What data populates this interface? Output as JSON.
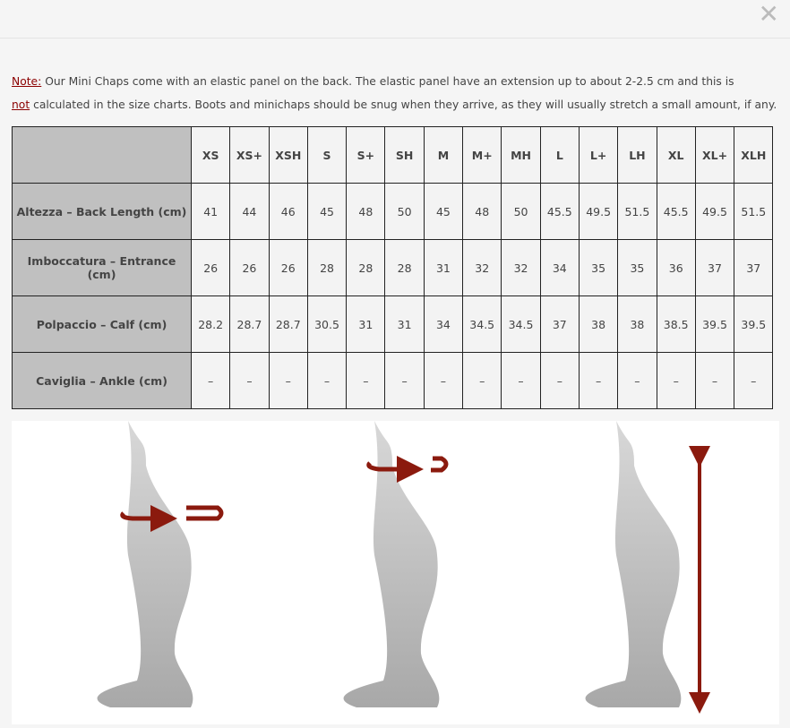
{
  "close_icon": "close-icon",
  "note": {
    "label": "Note:",
    "text1": " Our Mini Chaps come with an elastic panel on the back. The elastic panel have an extension up to about 2-2.5 cm and this is",
    "not": "not",
    "text2": " calculated in the size charts. Boots and minichaps should be snug when they arrive, as they will usually stretch a small amount, if any.",
    "accent": "#8b0000"
  },
  "table": {
    "sizes": [
      "XS",
      "XS+",
      "XSH",
      "S",
      "S+",
      "SH",
      "M",
      "M+",
      "MH",
      "L",
      "L+",
      "LH",
      "XL",
      "XL+",
      "XLH"
    ],
    "rows": [
      {
        "label": "Altezza – Back Length (cm)",
        "values": [
          "41",
          "44",
          "46",
          "45",
          "48",
          "50",
          "45",
          "48",
          "50",
          "45.5",
          "49.5",
          "51.5",
          "45.5",
          "49.5",
          "51.5"
        ]
      },
      {
        "label": "Imboccatura – Entrance (cm)",
        "values": [
          "26",
          "26",
          "26",
          "28",
          "28",
          "28",
          "31",
          "32",
          "32",
          "34",
          "35",
          "35",
          "36",
          "37",
          "37"
        ]
      },
      {
        "label": "Polpaccio – Calf (cm)",
        "values": [
          "28.2",
          "28.7",
          "28.7",
          "30.5",
          "31",
          "31",
          "34",
          "34.5",
          "34.5",
          "37",
          "38",
          "38",
          "38.5",
          "39.5",
          "39.5"
        ]
      },
      {
        "label": "Caviglia – Ankle (cm)",
        "values": [
          "–",
          "–",
          "–",
          "–",
          "–",
          "–",
          "–",
          "–",
          "–",
          "–",
          "–",
          "–",
          "–",
          "–",
          "–"
        ]
      }
    ]
  },
  "illustrations": [
    "calf-measure",
    "entrance-measure",
    "back-length-measure"
  ]
}
